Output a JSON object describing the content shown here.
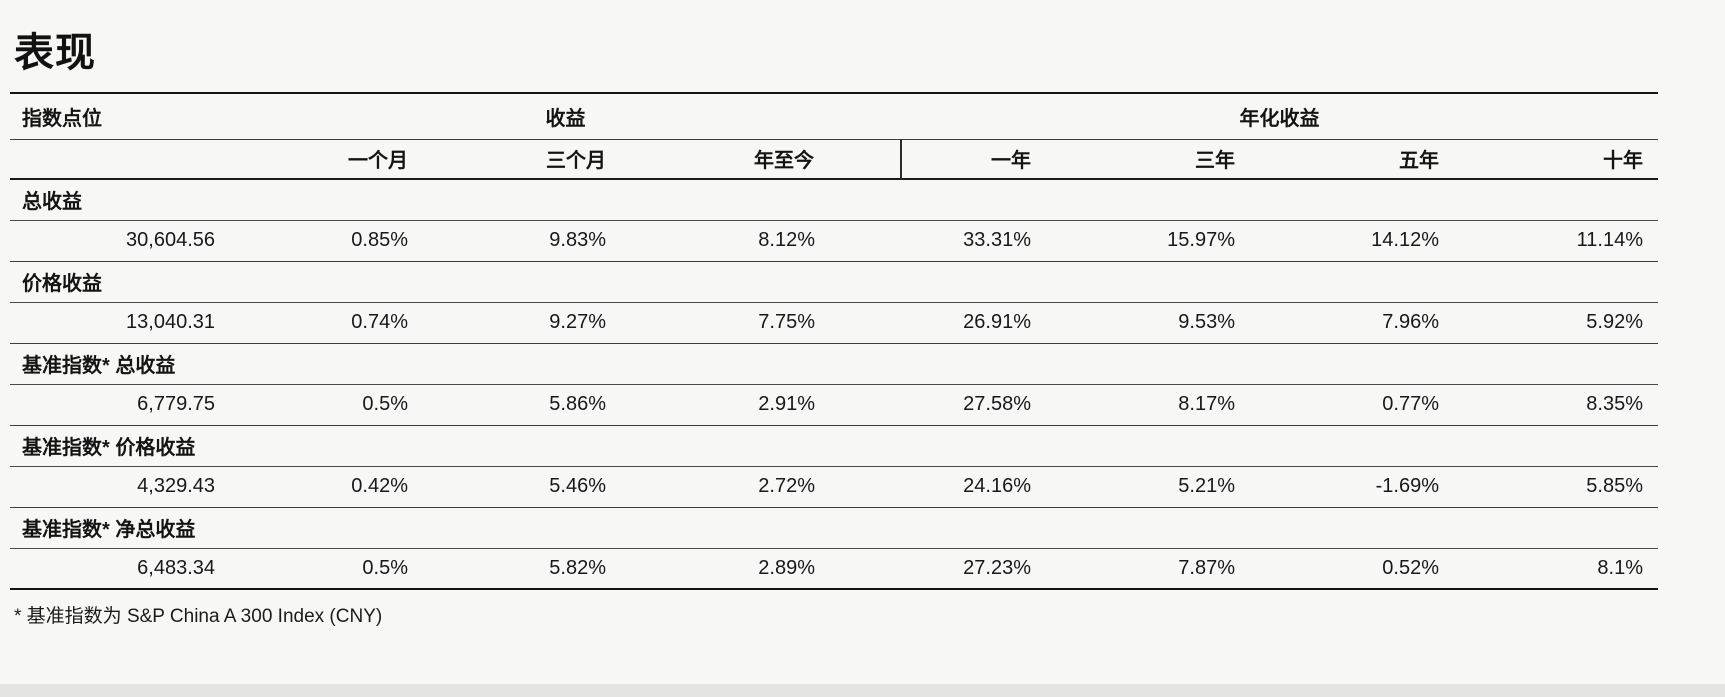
{
  "page": {
    "title": "表现",
    "footnote": "* 基准指数为 S&P China A 300 Index (CNY)"
  },
  "table": {
    "group_headers": {
      "index_level": "指数点位",
      "returns": "收益",
      "annualized": "年化收益"
    },
    "period_headers": [
      "一个月",
      "三个月",
      "年至今",
      "一年",
      "三年",
      "五年",
      "十年"
    ],
    "sections": [
      {
        "label": "总收益",
        "level": "30,604.56",
        "values": [
          "0.85%",
          "9.83%",
          "8.12%",
          "33.31%",
          "15.97%",
          "14.12%",
          "11.14%"
        ]
      },
      {
        "label": "价格收益",
        "level": "13,040.31",
        "values": [
          "0.74%",
          "9.27%",
          "7.75%",
          "26.91%",
          "9.53%",
          "7.96%",
          "5.92%"
        ]
      },
      {
        "label": "基准指数* 总收益",
        "level": "6,779.75",
        "values": [
          "0.5%",
          "5.86%",
          "2.91%",
          "27.58%",
          "8.17%",
          "0.77%",
          "8.35%"
        ]
      },
      {
        "label": "基准指数* 价格收益",
        "level": "4,329.43",
        "values": [
          "0.42%",
          "5.46%",
          "2.72%",
          "24.16%",
          "5.21%",
          "-1.69%",
          "5.85%"
        ]
      },
      {
        "label": "基准指数* 净总收益",
        "level": "6,483.34",
        "values": [
          "0.5%",
          "5.82%",
          "2.89%",
          "27.23%",
          "7.87%",
          "0.52%",
          "8.1%"
        ]
      }
    ]
  },
  "colors": {
    "background": "#f7f7f5",
    "text": "#17181c",
    "rule_thin": "#3d3d3d",
    "rule_thick": "#141414",
    "bottom_bar": "#e4e4e2"
  }
}
